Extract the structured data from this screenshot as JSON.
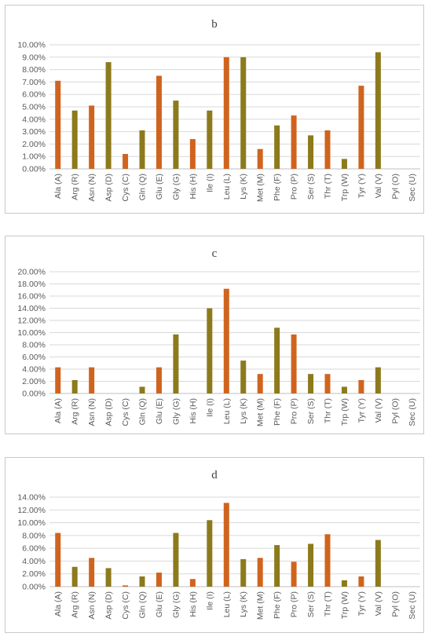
{
  "chart_data": [
    {
      "id": "b",
      "type": "bar",
      "title": "b",
      "categories": [
        "Ala (A)",
        "Arg (R)",
        "Asn (N)",
        "Asp (D)",
        "Cys (C)",
        "Gln (Q)",
        "Glu (E)",
        "Gly (G)",
        "His (H)",
        "Ile (I)",
        "Leu (L)",
        "Lys (K)",
        "Met (M)",
        "Phe (F)",
        "Pro (P)",
        "Ser (S)",
        "Thr (T)",
        "Trp (W)",
        "Tyr (Y)",
        "Val (V)",
        "Pyl (O)",
        "Sec (U)"
      ],
      "values": [
        7.1,
        4.7,
        5.1,
        8.6,
        1.2,
        3.1,
        7.5,
        5.5,
        2.4,
        4.7,
        9.0,
        9.0,
        1.6,
        3.5,
        4.3,
        2.7,
        3.1,
        0.8,
        6.7,
        9.4,
        0,
        0
      ],
      "ylim": [
        0,
        10
      ],
      "yticks": [
        "0.00%",
        "1.00%",
        "2.00%",
        "3.00%",
        "4.00%",
        "5.00%",
        "6.00%",
        "7.00%",
        "8.00%",
        "9.00%",
        "10.00%"
      ],
      "grid": true
    },
    {
      "id": "c",
      "type": "bar",
      "title": "c",
      "categories": [
        "Ala (A)",
        "Arg (R)",
        "Asn (N)",
        "Asp (D)",
        "Cys (C)",
        "Gln (Q)",
        "Glu (E)",
        "Gly (G)",
        "His (H)",
        "Ile (I)",
        "Leu (L)",
        "Lys (K)",
        "Met (M)",
        "Phe (F)",
        "Pro (P)",
        "Ser (S)",
        "Thr (T)",
        "Trp (W)",
        "Tyr (Y)",
        "Val (V)",
        "Pyl (O)",
        "Sec (U)"
      ],
      "values": [
        4.3,
        2.2,
        4.3,
        0,
        0,
        1.1,
        4.3,
        9.7,
        0,
        14.0,
        17.2,
        5.4,
        3.2,
        10.8,
        9.7,
        3.2,
        3.2,
        1.1,
        2.2,
        4.3,
        0,
        0
      ],
      "ylim": [
        0,
        20
      ],
      "yticks": [
        "0.00%",
        "2.00%",
        "4.00%",
        "6.00%",
        "8.00%",
        "10.00%",
        "12.00%",
        "14.00%",
        "16.00%",
        "18.00%",
        "20.00%"
      ],
      "grid": true
    },
    {
      "id": "d",
      "type": "bar",
      "title": "d",
      "categories": [
        "Ala (A)",
        "Arg (R)",
        "Asn (N)",
        "Asp (D)",
        "Cys (C)",
        "Gln (Q)",
        "Glu (E)",
        "Gly (G)",
        "His (H)",
        "Ile (I)",
        "Leu (L)",
        "Lys (K)",
        "Met (M)",
        "Phe (F)",
        "Pro (P)",
        "Ser (S)",
        "Thr (T)",
        "Trp (W)",
        "Tyr (Y)",
        "Val (V)",
        "Pyl (O)",
        "Sec (U)"
      ],
      "values": [
        8.4,
        3.1,
        4.5,
        2.9,
        0.2,
        1.6,
        2.2,
        8.4,
        1.2,
        10.4,
        13.1,
        4.3,
        4.5,
        6.5,
        3.9,
        6.7,
        8.2,
        1.0,
        1.6,
        7.3,
        0,
        0
      ],
      "ylim": [
        0,
        14
      ],
      "yticks": [
        "0.00%",
        "2.00%",
        "4.00%",
        "6.00%",
        "8.00%",
        "10.00%",
        "12.00%",
        "14.00%"
      ],
      "grid": true
    }
  ],
  "colors": {
    "orange": "#d0641e",
    "olive": "#8c7a1c"
  }
}
